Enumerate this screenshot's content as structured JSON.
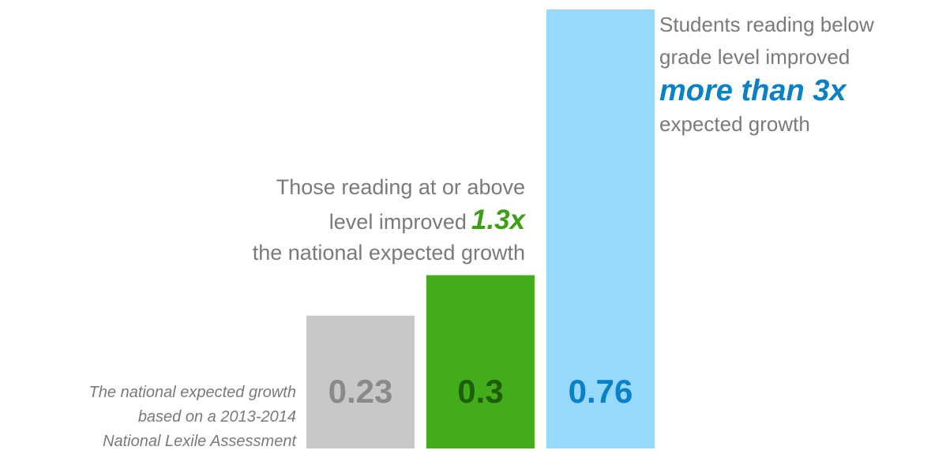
{
  "chart_data": {
    "type": "bar",
    "categories": [
      null,
      null,
      null
    ],
    "values": [
      0.23,
      0.3,
      0.76
    ],
    "colors": [
      "#c8c8c8",
      "#43ac1a",
      "#97d9fb"
    ],
    "label_colors": [
      "#8a8a8a",
      "#1e5e0b",
      "#0a80c6"
    ],
    "ylim": [
      0,
      0.76
    ],
    "annotations": [
      {
        "lines": [
          "The national expected growth",
          "based on a 2013-2014",
          "National Lexile Assessment"
        ]
      },
      {
        "lines": [
          "Those reading at or above",
          "level improved",
          "the national expected growth"
        ],
        "emphasis": "1.3x",
        "color": "#3d9f17"
      },
      {
        "lines": [
          "Students reading below",
          "grade level improved",
          "expected growth"
        ],
        "emphasis": "more than 3x",
        "color": "#0a80c6"
      }
    ]
  }
}
